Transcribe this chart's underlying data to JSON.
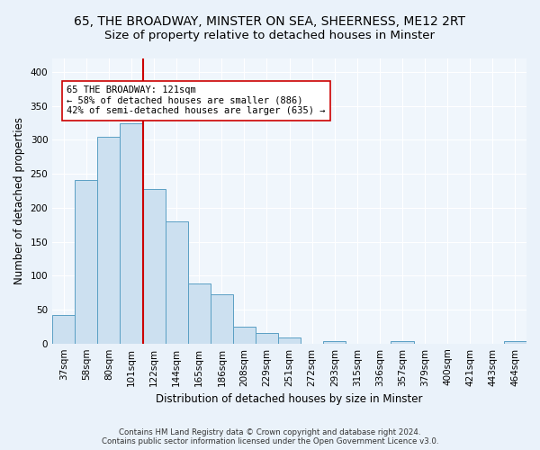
{
  "title_line1": "65, THE BROADWAY, MINSTER ON SEA, SHEERNESS, ME12 2RT",
  "title_line2": "Size of property relative to detached houses in Minster",
  "xlabel": "Distribution of detached houses by size in Minster",
  "ylabel": "Number of detached properties",
  "footnote": "Contains HM Land Registry data © Crown copyright and database right 2024.\nContains public sector information licensed under the Open Government Licence v3.0.",
  "bar_labels": [
    "37sqm",
    "58sqm",
    "80sqm",
    "101sqm",
    "122sqm",
    "144sqm",
    "165sqm",
    "186sqm",
    "208sqm",
    "229sqm",
    "251sqm",
    "272sqm",
    "293sqm",
    "315sqm",
    "336sqm",
    "357sqm",
    "379sqm",
    "400sqm",
    "421sqm",
    "443sqm",
    "464sqm"
  ],
  "bar_values": [
    42,
    241,
    305,
    325,
    228,
    180,
    88,
    72,
    25,
    15,
    9,
    0,
    4,
    0,
    0,
    4,
    0,
    0,
    0,
    0,
    4
  ],
  "bar_color": "#cce0f0",
  "bar_edge_color": "#5a9fc4",
  "vline_x_index": 4,
  "vline_color": "#cc0000",
  "annotation_text": "65 THE BROADWAY: 121sqm\n← 58% of detached houses are smaller (886)\n42% of semi-detached houses are larger (635) →",
  "annotation_box_color": "#ffffff",
  "annotation_box_edge": "#cc0000",
  "annotation_fontsize": 7.5,
  "title_fontsize1": 10,
  "title_fontsize2": 9.5,
  "xlabel_fontsize": 8.5,
  "ylabel_fontsize": 8.5,
  "tick_fontsize": 7.5,
  "bg_color": "#eaf2fa",
  "plot_bg_color": "#f0f6fc",
  "grid_color": "#ffffff",
  "ylim": [
    0,
    420
  ],
  "yticks": [
    0,
    50,
    100,
    150,
    200,
    250,
    300,
    350,
    400
  ]
}
